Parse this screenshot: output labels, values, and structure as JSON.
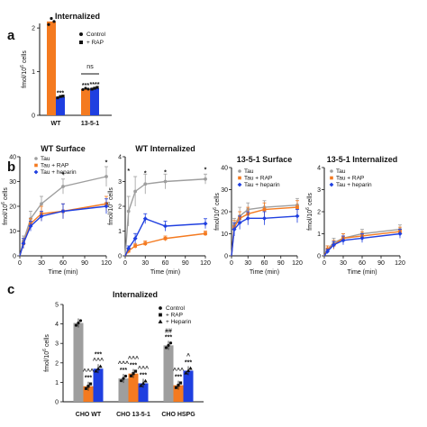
{
  "colors": {
    "gray": "#9e9e9e",
    "orange": "#f47a20",
    "blue": "#1f3fe0",
    "black": "#111111"
  },
  "panels": {
    "a": "a",
    "b": "b",
    "c": "c"
  },
  "chart_data": [
    {
      "id": "a",
      "type": "bar",
      "title": "Internalized",
      "ylabel": "fmol/10^6 cells",
      "ylim": [
        0,
        2
      ],
      "yticks": [
        0,
        1,
        2
      ],
      "categories": [
        "WT",
        "13-5-1"
      ],
      "legend": [
        {
          "name": "Control",
          "marker": "circle"
        },
        {
          "name": "+ RAP",
          "marker": "square"
        }
      ],
      "series": [
        {
          "key": "control",
          "color": "orange",
          "values": [
            2.15,
            0.6
          ],
          "points": [
            [
              2.08,
              2.22,
              2.15
            ],
            [
              0.59,
              0.62,
              0.6
            ]
          ]
        },
        {
          "key": "rap",
          "color": "blue",
          "values": [
            0.42,
            0.62
          ],
          "points": [
            [
              0.4,
              0.43,
              0.44
            ],
            [
              0.6,
              0.62,
              0.64
            ]
          ]
        }
      ],
      "annotations": [
        {
          "cat": 0,
          "series": 1,
          "text": "***"
        },
        {
          "cat": 1,
          "series": 0,
          "text": "***"
        },
        {
          "cat": 1,
          "series": 1,
          "text": "****"
        }
      ],
      "ns_label": "ns"
    },
    {
      "id": "b1",
      "type": "scatter",
      "title": "WT Surface",
      "xlabel": "Time (min)",
      "ylabel": "fmol/10^6 cells",
      "xlim": [
        0,
        120
      ],
      "ylim": [
        0,
        40
      ],
      "xticks": [
        0,
        30,
        60,
        90,
        120
      ],
      "yticks": [
        0,
        10,
        20,
        30,
        40
      ],
      "legend": [
        "Tau",
        "Tau + RAP",
        "Tau + heparin"
      ],
      "x": [
        5,
        15,
        30,
        60,
        120
      ],
      "series": [
        {
          "key": "tau",
          "color": "gray",
          "marker": "circle",
          "values": [
            6,
            15,
            21,
            28,
            32
          ],
          "err": [
            2,
            3,
            3,
            3,
            4
          ]
        },
        {
          "key": "rap",
          "color": "orange",
          "marker": "square",
          "values": [
            5,
            13,
            17,
            18,
            21
          ],
          "err": [
            2,
            2,
            3,
            3,
            3
          ]
        },
        {
          "key": "hep",
          "color": "blue",
          "marker": "diamond",
          "values": [
            5,
            12,
            16,
            18,
            20
          ],
          "err": [
            2,
            2,
            2,
            3,
            3
          ]
        }
      ],
      "stars": [
        {
          "x": 60,
          "y": 32,
          "text": "*"
        },
        {
          "x": 120,
          "y": 37,
          "text": "*"
        }
      ]
    },
    {
      "id": "b2",
      "type": "scatter",
      "title": "WT Internalized",
      "xlabel": "Time (min)",
      "ylabel": "fmol/10^6 cells",
      "xlim": [
        0,
        120
      ],
      "ylim": [
        0,
        4
      ],
      "xticks": [
        0,
        30,
        60,
        90,
        120
      ],
      "yticks": [
        0,
        1,
        2,
        3,
        4
      ],
      "x": [
        5,
        15,
        30,
        60,
        120
      ],
      "series": [
        {
          "key": "tau",
          "color": "gray",
          "marker": "circle",
          "values": [
            1.8,
            2.6,
            2.9,
            3.0,
            3.1
          ],
          "err": [
            0.6,
            0.6,
            0.4,
            0.3,
            0.2
          ]
        },
        {
          "key": "rap",
          "color": "orange",
          "marker": "square",
          "values": [
            0.2,
            0.4,
            0.5,
            0.7,
            0.9
          ],
          "err": [
            0.1,
            0.1,
            0.1,
            0.1,
            0.1
          ]
        },
        {
          "key": "hep",
          "color": "blue",
          "marker": "diamond",
          "values": [
            0.3,
            0.7,
            1.5,
            1.2,
            1.3
          ],
          "err": [
            0.1,
            0.2,
            0.2,
            0.2,
            0.2
          ]
        }
      ],
      "stars": [
        {
          "x": 5,
          "y": 3.35,
          "text": "*"
        },
        {
          "x": 30,
          "y": 3.25,
          "text": "*"
        },
        {
          "x": 60,
          "y": 3.3,
          "text": "*"
        },
        {
          "x": 120,
          "y": 3.4,
          "text": "*"
        }
      ]
    },
    {
      "id": "b3",
      "type": "scatter",
      "title": "13-5-1 Surface",
      "xlabel": "Time (min)",
      "ylabel": "fmol/10^6 cells",
      "xlim": [
        0,
        120
      ],
      "ylim": [
        0,
        40
      ],
      "xticks": [
        0,
        30,
        60,
        90,
        120
      ],
      "yticks": [
        0,
        10,
        20,
        30,
        40
      ],
      "legend": [
        "Tau",
        "Tau + RAP",
        "Tau + heparin"
      ],
      "x": [
        5,
        15,
        30,
        60,
        120
      ],
      "series": [
        {
          "key": "tau",
          "color": "gray",
          "marker": "circle",
          "values": [
            14,
            18,
            21,
            22,
            23
          ],
          "err": [
            3,
            4,
            3,
            3,
            3
          ]
        },
        {
          "key": "rap",
          "color": "orange",
          "marker": "square",
          "values": [
            13,
            17,
            19,
            21,
            22
          ],
          "err": [
            3,
            3,
            3,
            3,
            3
          ]
        },
        {
          "key": "hep",
          "color": "blue",
          "marker": "diamond",
          "values": [
            12,
            15,
            17,
            17,
            18
          ],
          "err": [
            3,
            3,
            3,
            3,
            3
          ]
        }
      ],
      "stars": []
    },
    {
      "id": "b4",
      "type": "scatter",
      "title": "13-5-1 Internalized",
      "xlabel": "Time (min)",
      "ylabel": "fmol/10^6 cells",
      "xlim": [
        0,
        120
      ],
      "ylim": [
        0,
        4
      ],
      "xticks": [
        0,
        30,
        60,
        90,
        120
      ],
      "yticks": [
        0,
        1,
        2,
        3,
        4
      ],
      "legend": [
        "Tau",
        "Tau + RAP",
        "Tau + heparin"
      ],
      "x": [
        5,
        15,
        30,
        60,
        120
      ],
      "series": [
        {
          "key": "tau",
          "color": "gray",
          "marker": "circle",
          "values": [
            0.3,
            0.6,
            0.8,
            1.0,
            1.2
          ],
          "err": [
            0.15,
            0.2,
            0.2,
            0.2,
            0.2
          ]
        },
        {
          "key": "rap",
          "color": "orange",
          "marker": "square",
          "values": [
            0.3,
            0.5,
            0.8,
            0.9,
            1.1
          ],
          "err": [
            0.15,
            0.2,
            0.2,
            0.2,
            0.2
          ]
        },
        {
          "key": "hep",
          "color": "blue",
          "marker": "diamond",
          "values": [
            0.2,
            0.5,
            0.7,
            0.8,
            1.0
          ],
          "err": [
            0.1,
            0.15,
            0.2,
            0.2,
            0.2
          ]
        }
      ],
      "stars": []
    },
    {
      "id": "c",
      "type": "bar",
      "title": "Internalized",
      "ylabel": "fmol/10^6 cells",
      "ylim": [
        0,
        5
      ],
      "yticks": [
        0,
        1,
        2,
        3,
        4,
        5
      ],
      "categories": [
        "CHO WT",
        "CHO 13-5-1",
        "CHO HSPG"
      ],
      "legend": [
        {
          "name": "Control",
          "marker": "circle"
        },
        {
          "name": "+ RAP",
          "marker": "square"
        },
        {
          "name": "+ Heparin",
          "marker": "triangle"
        }
      ],
      "series": [
        {
          "key": "control",
          "color": "gray",
          "values": [
            4.05,
            1.2,
            2.9
          ]
        },
        {
          "key": "rap",
          "color": "orange",
          "values": [
            0.8,
            1.45,
            0.85
          ]
        },
        {
          "key": "hep",
          "color": "blue",
          "values": [
            1.7,
            0.95,
            1.6
          ]
        }
      ],
      "annotations": [
        {
          "cat": 0,
          "series": 1,
          "text": "***"
        },
        {
          "cat": 0,
          "series": 1,
          "text": "^^^",
          "row": 2
        },
        {
          "cat": 0,
          "series": 2,
          "text": "^^^"
        },
        {
          "cat": 0,
          "series": 2,
          "text": "***",
          "row": 2
        },
        {
          "cat": 1,
          "series": 0,
          "text": "***"
        },
        {
          "cat": 1,
          "series": 0,
          "text": "^^^",
          "row": 2
        },
        {
          "cat": 1,
          "series": 1,
          "text": "***"
        },
        {
          "cat": 1,
          "series": 1,
          "text": "^^^",
          "row": 2
        },
        {
          "cat": 1,
          "series": 2,
          "text": "***"
        },
        {
          "cat": 1,
          "series": 2,
          "text": "^^^",
          "row": 2
        },
        {
          "cat": 2,
          "series": 0,
          "text": "***"
        },
        {
          "cat": 2,
          "series": 0,
          "text": "##",
          "row": 2
        },
        {
          "cat": 2,
          "series": 1,
          "text": "***"
        },
        {
          "cat": 2,
          "series": 1,
          "text": "^^^",
          "row": 2
        },
        {
          "cat": 2,
          "series": 2,
          "text": "***"
        },
        {
          "cat": 2,
          "series": 2,
          "text": "^",
          "row": 2
        }
      ]
    }
  ]
}
